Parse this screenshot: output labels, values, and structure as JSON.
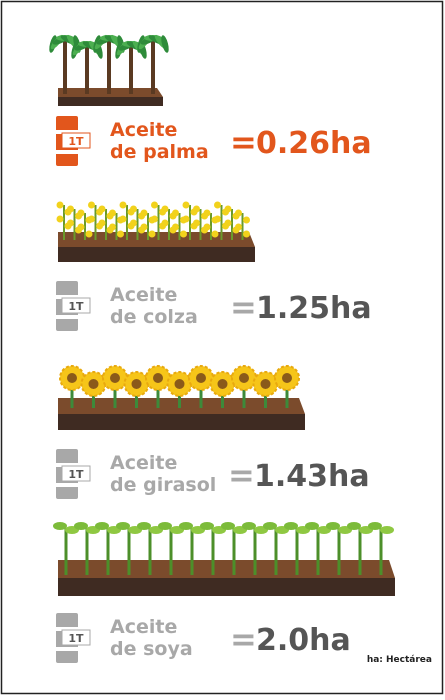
{
  "items": [
    {
      "barrel": "1T",
      "label": [
        "Aceite",
        "de palma"
      ],
      "sign": "=",
      "amount": "0.26ha"
    },
    {
      "barrel": "1T",
      "label": [
        "Aceite",
        "de colza"
      ],
      "sign": "=",
      "amount": "1.25ha"
    },
    {
      "barrel": "1T",
      "label": [
        "Aceite",
        "de girasol"
      ],
      "sign": "=",
      "amount": "1.43ha"
    },
    {
      "barrel": "1T",
      "label": [
        "Aceite",
        "de soya"
      ],
      "sign": "=",
      "amount": "2.0ha"
    }
  ],
  "footnote": "ha: Hectárea"
}
